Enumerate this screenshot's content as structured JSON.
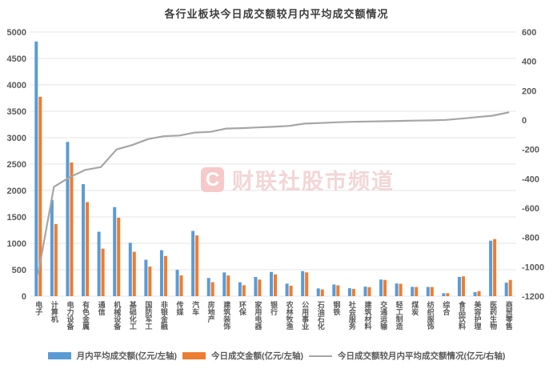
{
  "title": "各行业板块今日成交额较月内平均成交额情况",
  "watermark": {
    "badge": "C",
    "text": "财联社股市频道"
  },
  "legend": [
    {
      "type": "bar",
      "color": "#5B9BD5",
      "label": "月内平均成交额(亿元/左轴)"
    },
    {
      "type": "bar",
      "color": "#ED7D31",
      "label": "今日成交金额(亿元/左轴)"
    },
    {
      "type": "line",
      "color": "#A6A6A6",
      "label": "今日成交额较月内平均成交额情况(亿元/右轴)"
    }
  ],
  "colors": {
    "avg_bar": "#5B9BD5",
    "today_bar": "#ED7D31",
    "diff_line": "#A6A6A6",
    "gridline": "#E4E4E4",
    "axis_text": "#595959",
    "title_text": "#3D3D3D",
    "watermark_pink": "#F3D6D6"
  },
  "chart_data": {
    "type": "bar",
    "subtype": "grouped-bars-with-line-combo",
    "title": "各行业板块今日成交额较月内平均成交额情况",
    "xlabel": "",
    "ylabel_left": "亿元",
    "ylabel_right": "亿元",
    "grid": true,
    "legend_position": "bottom",
    "left_axis": {
      "min": 0,
      "max": 5000,
      "step": 500
    },
    "right_axis": {
      "min": -1200,
      "max": 600,
      "step": 200
    },
    "categories": [
      "电子",
      "计算机",
      "电力设备",
      "有色金属",
      "通信",
      "机械设备",
      "基础化工",
      "国防军工",
      "非银金融",
      "传媒",
      "汽车",
      "房地产",
      "建筑装饰",
      "环保",
      "家用电器",
      "银行",
      "农林牧渔",
      "公用事业",
      "石油石化",
      "钢铁",
      "社会服务",
      "建筑材料",
      "交通运输",
      "轻工制造",
      "煤炭",
      "纺织服饰",
      "综合",
      "食品饮料",
      "美容护理",
      "医药生物",
      "商贸零售"
    ],
    "series": [
      {
        "name": "月内平均成交额(亿元/左轴)",
        "type": "bar",
        "axis": "left",
        "color": "#5B9BD5",
        "values": [
          4820,
          1820,
          2920,
          2120,
          1220,
          1685,
          1010,
          690,
          870,
          498,
          1235,
          345,
          450,
          262,
          364,
          458,
          237,
          474,
          147,
          220,
          150,
          180,
          315,
          240,
          177,
          175,
          55,
          365,
          76,
          1050,
          255
        ]
      },
      {
        "name": "今日成交金额(亿元/左轴)",
        "type": "bar",
        "axis": "left",
        "color": "#ED7D31",
        "values": [
          3775,
          1365,
          2530,
          1780,
          900,
          1485,
          840,
          560,
          760,
          393,
          1150,
          265,
          392,
          207,
          314,
          412,
          197,
          450,
          127,
          205,
          138,
          170,
          307,
          234,
          173,
          173,
          56,
          375,
          96,
          1080,
          307
        ]
      },
      {
        "name": "今日成交额较月内平均成交额情况(亿元/右轴)",
        "type": "line",
        "axis": "right",
        "color": "#A6A6A6",
        "values": [
          -1045,
          -455,
          -390,
          -340,
          -320,
          -200,
          -170,
          -130,
          -110,
          -105,
          -85,
          -80,
          -58,
          -55,
          -50,
          -46,
          -40,
          -24,
          -20,
          -15,
          -12,
          -10,
          -8,
          -6,
          -4,
          -2,
          1,
          10,
          20,
          30,
          52
        ]
      }
    ]
  }
}
